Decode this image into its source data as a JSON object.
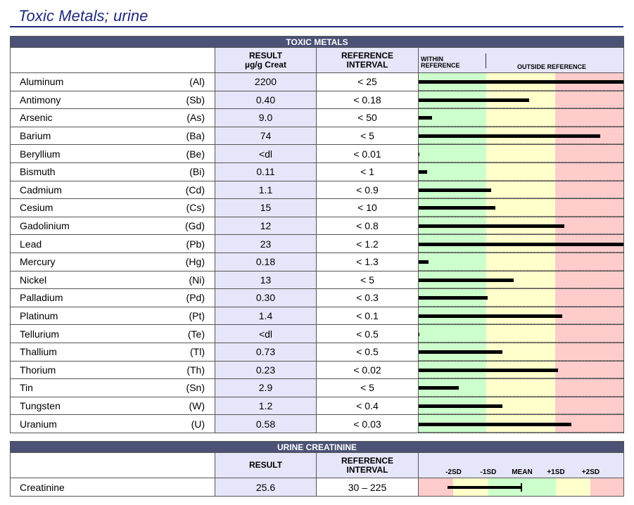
{
  "page_title": "Toxic Metals; urine",
  "toxic": {
    "section_title": "TOXIC METALS",
    "headers": {
      "result_line1": "RESULT",
      "result_line2": "µg/g Creat",
      "ref_line1": "REFERENCE",
      "ref_line2": "INTERVAL",
      "within_line1": "WITHIN",
      "within_line2": "REFERENCE",
      "outside": "OUTSIDE REFERENCE"
    },
    "colors": {
      "within": "#ccffcc",
      "caution": "#ffffcc",
      "outside": "#ffcccc",
      "bar": "#000000"
    },
    "rows": [
      {
        "name": "Aluminum",
        "symbol": "(Al)",
        "result": "2200",
        "reference": "< 25",
        "level": 1.0
      },
      {
        "name": "Antimony",
        "symbol": "(Sb)",
        "result": "0.40",
        "reference": "< 0.18",
        "level": 0.54
      },
      {
        "name": "Arsenic",
        "symbol": "(As)",
        "result": "9.0",
        "reference": "< 50",
        "level": 0.065
      },
      {
        "name": "Barium",
        "symbol": "(Ba)",
        "result": "74",
        "reference": "< 5",
        "level": 0.885
      },
      {
        "name": "Beryllium",
        "symbol": "(Be)",
        "result": "<dl",
        "reference": "< 0.01",
        "level": 0.004
      },
      {
        "name": "Bismuth",
        "symbol": "(Bi)",
        "result": "0.11",
        "reference": "< 1",
        "level": 0.04
      },
      {
        "name": "Cadmium",
        "symbol": "(Cd)",
        "result": "1.1",
        "reference": "< 0.9",
        "level": 0.355
      },
      {
        "name": "Cesium",
        "symbol": "(Cs)",
        "result": "15",
        "reference": "< 10",
        "level": 0.375
      },
      {
        "name": "Gadolinium",
        "symbol": "(Gd)",
        "result": "12",
        "reference": "< 0.8",
        "level": 0.71
      },
      {
        "name": "Lead",
        "symbol": "(Pb)",
        "result": "23",
        "reference": "< 1.2",
        "level": 1.0
      },
      {
        "name": "Mercury",
        "symbol": "(Hg)",
        "result": "0.18",
        "reference": "< 1.3",
        "level": 0.048
      },
      {
        "name": "Nickel",
        "symbol": "(Ni)",
        "result": "13",
        "reference": "< 5",
        "level": 0.465
      },
      {
        "name": "Palladium",
        "symbol": "(Pd)",
        "result": "0.30",
        "reference": "< 0.3",
        "level": 0.335
      },
      {
        "name": "Platinum",
        "symbol": "(Pt)",
        "result": "1.4",
        "reference": "< 0.1",
        "level": 0.7
      },
      {
        "name": "Tellurium",
        "symbol": "(Te)",
        "result": "<dl",
        "reference": "< 0.5",
        "level": 0.004
      },
      {
        "name": "Thallium",
        "symbol": "(Tl)",
        "result": "0.73",
        "reference": "< 0.5",
        "level": 0.41
      },
      {
        "name": "Thorium",
        "symbol": "(Th)",
        "result": "0.23",
        "reference": "< 0.02",
        "level": 0.68
      },
      {
        "name": "Tin",
        "symbol": "(Sn)",
        "result": "2.9",
        "reference": "< 5",
        "level": 0.195
      },
      {
        "name": "Tungsten",
        "symbol": "(W)",
        "result": "1.2",
        "reference": "< 0.4",
        "level": 0.41
      },
      {
        "name": "Uranium",
        "symbol": "(U)",
        "result": "0.58",
        "reference": "< 0.03",
        "level": 0.745
      }
    ]
  },
  "creatinine": {
    "section_title": "URINE CREATININE",
    "headers": {
      "result": "RESULT",
      "ref_line1": "REFERENCE",
      "ref_line2": "INTERVAL"
    },
    "sd_labels": [
      "-2SD",
      "-1SD",
      "MEAN",
      "+1SD",
      "+2SD"
    ],
    "row": {
      "name": "Creatinine",
      "result": "25.6",
      "reference": "30 – 225",
      "bar_from": 0.14,
      "bar_to": 0.5
    }
  }
}
